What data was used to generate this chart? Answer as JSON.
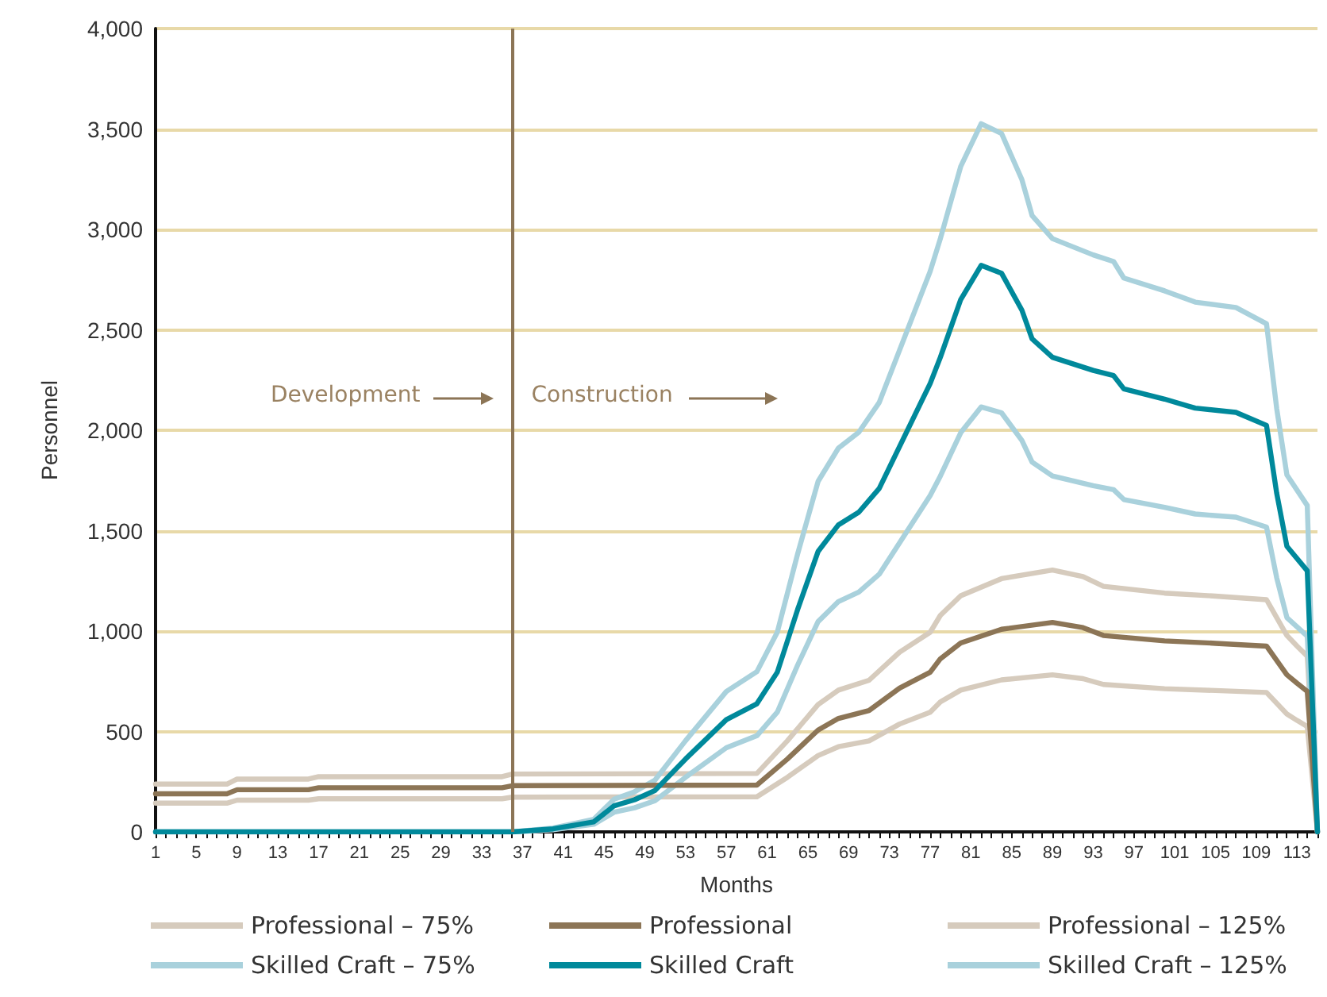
{
  "chart_data": {
    "type": "line",
    "xlabel": "Months",
    "ylabel": "Personnel",
    "xlim": [
      1,
      115
    ],
    "ylim": [
      0,
      4000
    ],
    "xticks": [
      1,
      {
        "value": 2,
        "label": null
      },
      {
        "value": 3,
        "label": null
      },
      {
        "value": 4,
        "label": null
      },
      5,
      {
        "value": 6,
        "label": null
      },
      {
        "value": 7,
        "label": null
      },
      {
        "value": 8,
        "label": null
      },
      9,
      {
        "value": 10,
        "label": null
      },
      {
        "value": 11,
        "label": null
      },
      {
        "value": 12,
        "label": null
      },
      13,
      {
        "value": 14,
        "label": null
      },
      {
        "value": 15,
        "label": null
      },
      {
        "value": 16,
        "label": null
      },
      17,
      {
        "value": 18,
        "label": null
      },
      {
        "value": 19,
        "label": null
      },
      {
        "value": 20,
        "label": null
      },
      21,
      {
        "value": 22,
        "label": null
      },
      {
        "value": 23,
        "label": null
      },
      {
        "value": 24,
        "label": null
      },
      25,
      {
        "value": 26,
        "label": null
      },
      {
        "value": 27,
        "label": null
      },
      {
        "value": 28,
        "label": null
      },
      29,
      {
        "value": 30,
        "label": null
      },
      {
        "value": 31,
        "label": null
      },
      {
        "value": 32,
        "label": null
      },
      33,
      {
        "value": 34,
        "label": null
      },
      {
        "value": 35,
        "label": null
      },
      {
        "value": 36,
        "label": null
      },
      37,
      {
        "value": 38,
        "label": null
      },
      {
        "value": 39,
        "label": null
      },
      {
        "value": 40,
        "label": null
      },
      41,
      {
        "value": 42,
        "label": null
      },
      {
        "value": 43,
        "label": null
      },
      {
        "value": 44,
        "label": null
      },
      45,
      {
        "value": 46,
        "label": null
      },
      {
        "value": 47,
        "label": null
      },
      {
        "value": 48,
        "label": null
      },
      49,
      {
        "value": 50,
        "label": null
      },
      {
        "value": 51,
        "label": null
      },
      {
        "value": 52,
        "label": null
      },
      53,
      {
        "value": 54,
        "label": null
      },
      {
        "value": 55,
        "label": null
      },
      {
        "value": 56,
        "label": null
      },
      57,
      {
        "value": 58,
        "label": null
      },
      {
        "value": 59,
        "label": null
      },
      {
        "value": 60,
        "label": null
      },
      61,
      {
        "value": 62,
        "label": null
      },
      {
        "value": 63,
        "label": null
      },
      {
        "value": 64,
        "label": null
      },
      65,
      {
        "value": 66,
        "label": null
      },
      {
        "value": 67,
        "label": null
      },
      {
        "value": 68,
        "label": null
      },
      69,
      {
        "value": 70,
        "label": null
      },
      {
        "value": 71,
        "label": null
      },
      {
        "value": 72,
        "label": null
      },
      73,
      {
        "value": 74,
        "label": null
      },
      {
        "value": 75,
        "label": null
      },
      {
        "value": 76,
        "label": null
      },
      77,
      {
        "value": 78,
        "label": null
      },
      {
        "value": 79,
        "label": null
      },
      {
        "value": 80,
        "label": null
      },
      81,
      {
        "value": 82,
        "label": null
      },
      {
        "value": 83,
        "label": null
      },
      {
        "value": 84,
        "label": null
      },
      85,
      {
        "value": 86,
        "label": null
      },
      {
        "value": 87,
        "label": null
      },
      {
        "value": 88,
        "label": null
      },
      89,
      {
        "value": 90,
        "label": null
      },
      {
        "value": 91,
        "label": null
      },
      {
        "value": 92,
        "label": null
      },
      93,
      {
        "value": 94,
        "label": null
      },
      {
        "value": 95,
        "label": null
      },
      {
        "value": 96,
        "label": null
      },
      97,
      {
        "value": 98,
        "label": null
      },
      {
        "value": 99,
        "label": null
      },
      {
        "value": 100,
        "label": null
      },
      101,
      {
        "value": 102,
        "label": null
      },
      {
        "value": 103,
        "label": null
      },
      {
        "value": 104,
        "label": null
      },
      105,
      {
        "value": 106,
        "label": null
      },
      {
        "value": 107,
        "label": null
      },
      {
        "value": 108,
        "label": null
      },
      109,
      {
        "value": 110,
        "label": null
      },
      {
        "value": 111,
        "label": null
      },
      {
        "value": 112,
        "label": null
      },
      113,
      {
        "value": 114,
        "label": null
      },
      {
        "value": 115,
        "label": null
      }
    ],
    "yticks": [
      0,
      500,
      {
        "value": 1000,
        "label": "1,000"
      },
      {
        "value": 1500,
        "label": "1,500"
      },
      {
        "value": 2000,
        "label": "2,000"
      },
      {
        "value": 2500,
        "label": "2,500"
      },
      {
        "value": 3000,
        "label": "3,000"
      },
      {
        "value": 3500,
        "label": "3,500"
      },
      {
        "value": 4000,
        "label": "4,000"
      }
    ],
    "grid": "y",
    "legend": "bottom",
    "marker": "none",
    "line_style": "solid",
    "ref_lines": [
      {
        "axis": "x",
        "value": 36,
        "label": null,
        "color": "#8c7556"
      }
    ],
    "annotations": [
      "Development",
      "Construction"
    ],
    "series": [
      {
        "name": "Professional – 75%",
        "color": "#d6cbbd",
        "x": [
          1,
          8,
          9,
          16,
          17,
          35,
          36,
          60,
          63,
          66,
          68,
          71,
          74,
          77,
          78,
          80,
          84,
          89,
          92,
          94,
          100,
          105,
          110,
          112,
          113,
          114,
          115
        ],
        "values": [
          143,
          143,
          158,
          158,
          165,
          165,
          173,
          175,
          272,
          380,
          424,
          453,
          537,
          596,
          647,
          706,
          757,
          782,
          763,
          734,
          713,
          704,
          694,
          587,
          555,
          525,
          0
        ]
      },
      {
        "name": "Professional",
        "color": "#8c7556",
        "x": [
          1,
          8,
          9,
          16,
          17,
          35,
          36,
          60,
          63,
          66,
          68,
          71,
          74,
          77,
          78,
          80,
          84,
          89,
          92,
          94,
          100,
          105,
          110,
          112,
          113,
          114,
          115
        ],
        "values": [
          190,
          190,
          210,
          210,
          220,
          220,
          230,
          233,
          363,
          507,
          565,
          604,
          716,
          795,
          862,
          941,
          1009,
          1043,
          1017,
          978,
          951,
          939,
          925,
          782,
          740,
          700,
          0
        ]
      },
      {
        "name": "Professional – 125%",
        "color": "#d6cbbd",
        "x": [
          1,
          8,
          9,
          16,
          17,
          35,
          36,
          60,
          63,
          66,
          68,
          71,
          74,
          77,
          78,
          80,
          84,
          89,
          92,
          94,
          100,
          105,
          110,
          112,
          113,
          114,
          115
        ],
        "values": [
          238,
          238,
          263,
          263,
          275,
          275,
          288,
          291,
          454,
          634,
          706,
          755,
          895,
          994,
          1078,
          1176,
          1261,
          1304,
          1271,
          1223,
          1189,
          1174,
          1156,
          978,
          925,
          875,
          0
        ]
      },
      {
        "name": "Skilled Craft – 75%",
        "color": "#a9d1dc",
        "x": [
          1,
          36,
          40,
          44,
          46,
          48,
          50,
          53,
          57,
          60,
          62,
          64,
          66,
          68,
          70,
          72,
          77,
          78,
          80,
          82,
          84,
          86,
          87,
          89,
          93,
          95,
          96,
          100,
          103,
          107,
          110,
          111,
          112,
          114,
          115
        ],
        "values": [
          0,
          0,
          11,
          38,
          98,
          120,
          155,
          272,
          419,
          479,
          596,
          831,
          1047,
          1147,
          1194,
          1283,
          1675,
          1772,
          1988,
          2116,
          2087,
          1949,
          1841,
          1772,
          1724,
          1704,
          1655,
          1616,
          1583,
          1567,
          1518,
          1265,
          1067,
          975,
          0
        ]
      },
      {
        "name": "Skilled Craft",
        "color": "#00899b",
        "x": [
          1,
          36,
          40,
          44,
          46,
          48,
          50,
          53,
          57,
          60,
          62,
          64,
          66,
          68,
          70,
          72,
          77,
          78,
          80,
          82,
          84,
          86,
          87,
          89,
          93,
          95,
          96,
          100,
          103,
          107,
          110,
          111,
          112,
          114,
          115
        ],
        "values": [
          0,
          0,
          15,
          50,
          130,
          160,
          206,
          363,
          559,
          638,
          795,
          1108,
          1396,
          1529,
          1592,
          1710,
          2233,
          2363,
          2651,
          2821,
          2782,
          2598,
          2455,
          2363,
          2298,
          2272,
          2206,
          2155,
          2110,
          2089,
          2024,
          1686,
          1422,
          1300,
          0
        ]
      },
      {
        "name": "Skilled Craft – 125%",
        "color": "#a9d1dc",
        "x": [
          1,
          36,
          40,
          44,
          46,
          48,
          50,
          53,
          57,
          60,
          62,
          64,
          66,
          68,
          70,
          72,
          77,
          78,
          80,
          82,
          84,
          86,
          87,
          89,
          93,
          95,
          96,
          100,
          103,
          107,
          110,
          111,
          112,
          114,
          115
        ],
        "values": [
          0,
          0,
          19,
          63,
          163,
          200,
          258,
          454,
          699,
          798,
          994,
          1385,
          1745,
          1911,
          1990,
          2138,
          2791,
          2954,
          3314,
          3526,
          3478,
          3248,
          3069,
          2954,
          2873,
          2840,
          2758,
          2694,
          2638,
          2611,
          2530,
          2108,
          1778,
          1625,
          0
        ]
      }
    ]
  }
}
